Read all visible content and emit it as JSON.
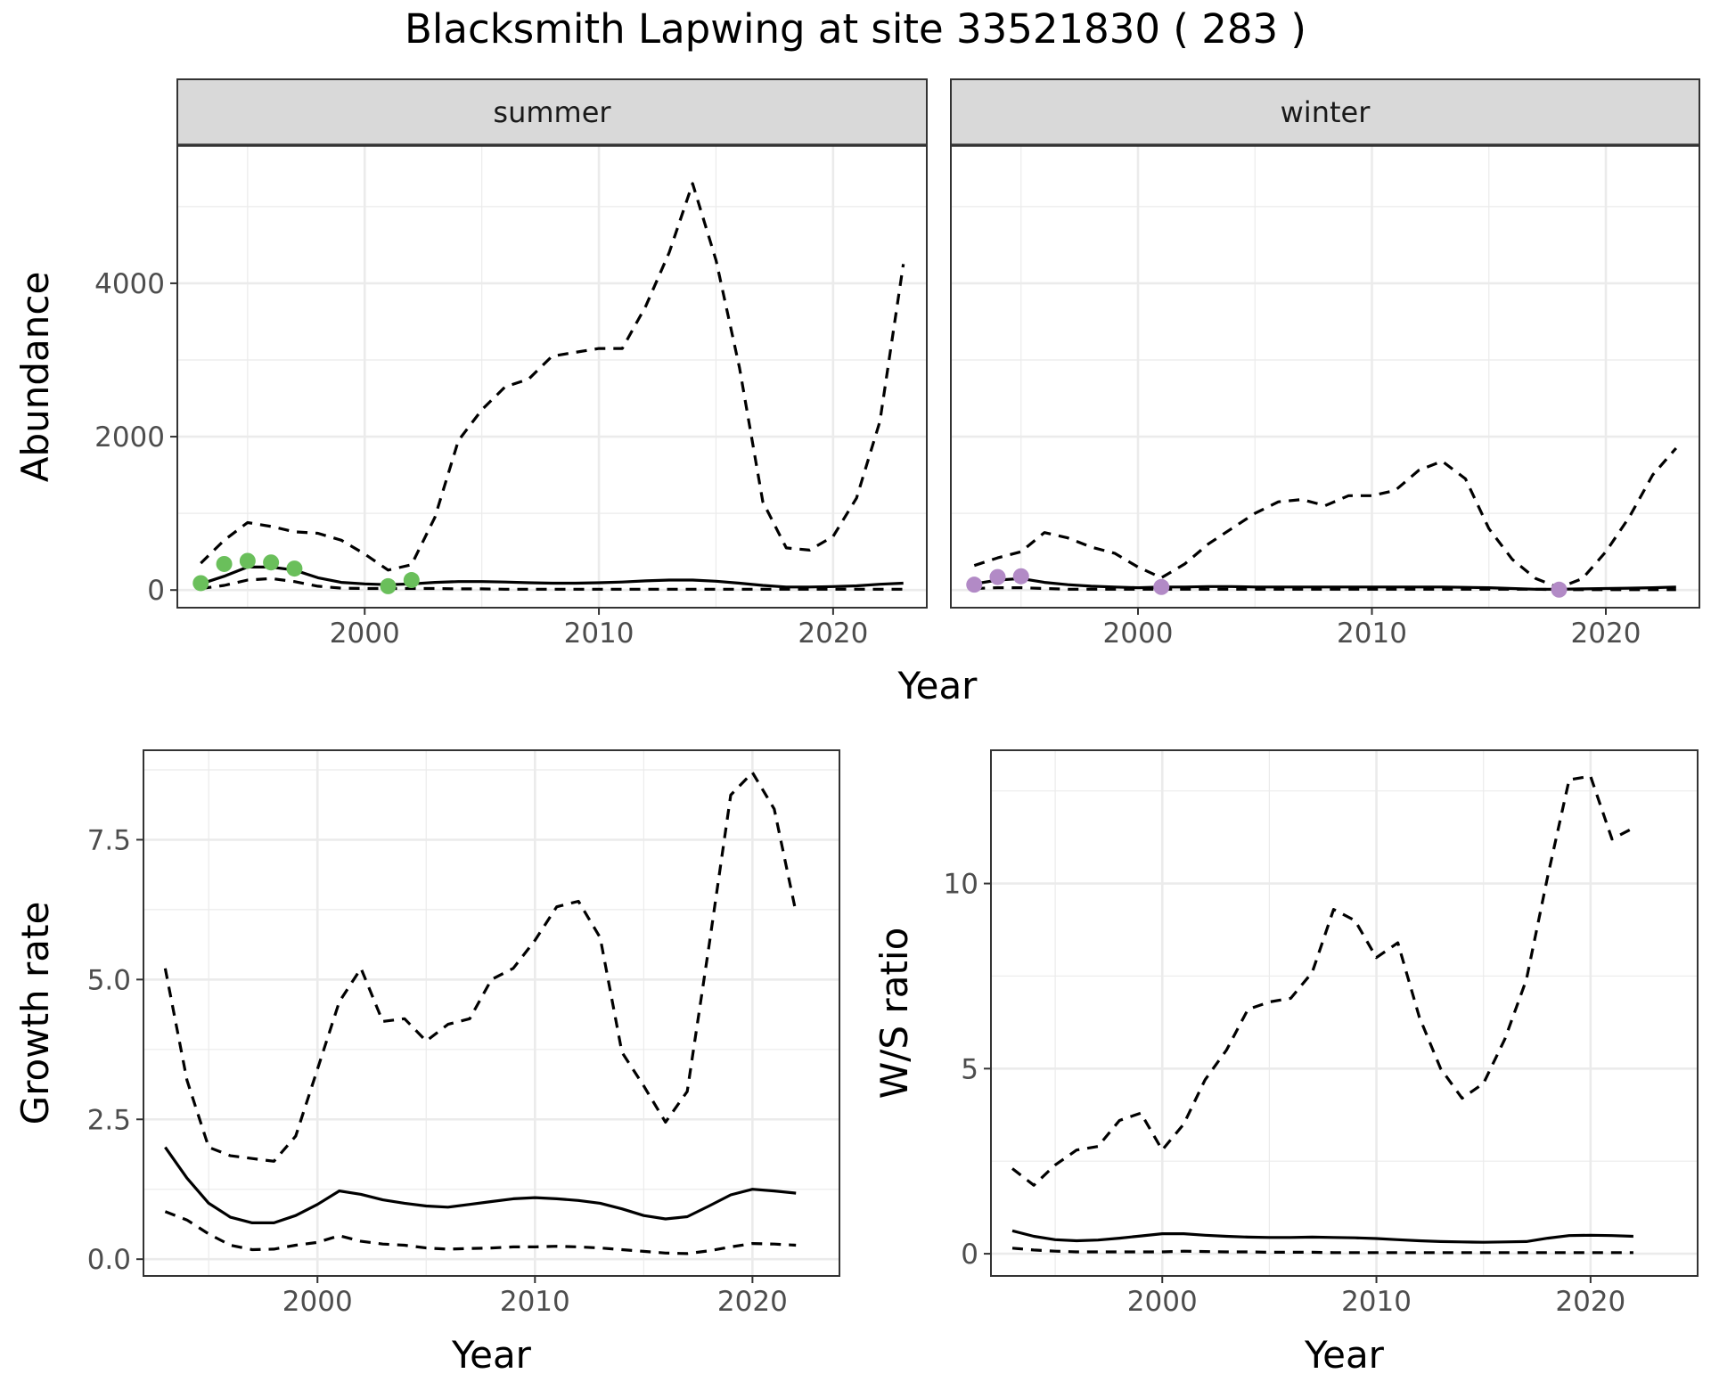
{
  "title": "Blacksmith Lapwing at site 33521830 ( 283 )",
  "colors": {
    "summer_points": "#6abf5b",
    "winter_points": "#b28ac6",
    "strip_fill": "#d9d9d9",
    "grid": "#ebebeb",
    "line": "#000000"
  },
  "chart_data": [
    {
      "type": "line",
      "panel": "summer",
      "strip_label": "summer",
      "xlabel": "Year",
      "ylabel": "Abundance",
      "xlim": [
        1992,
        2024
      ],
      "ylim": [
        -230,
        5800
      ],
      "xticks": [
        2000,
        2010,
        2020
      ],
      "yticks": [
        0,
        2000,
        4000
      ],
      "grid": true,
      "x": [
        1993,
        1994,
        1995,
        1996,
        1997,
        1998,
        1999,
        2000,
        2001,
        2002,
        2003,
        2004,
        2005,
        2006,
        2007,
        2008,
        2009,
        2010,
        2011,
        2012,
        2013,
        2014,
        2015,
        2016,
        2017,
        2018,
        2019,
        2020,
        2021,
        2022,
        2023
      ],
      "series": [
        {
          "style": "solid",
          "values": [
            80,
            180,
            300,
            300,
            260,
            160,
            100,
            80,
            70,
            80,
            100,
            110,
            110,
            105,
            95,
            90,
            90,
            95,
            105,
            120,
            130,
            130,
            115,
            90,
            60,
            40,
            40,
            45,
            55,
            75,
            90
          ]
        },
        {
          "style": "dashed",
          "values": [
            350,
            650,
            880,
            830,
            760,
            740,
            650,
            470,
            260,
            330,
            950,
            1950,
            2350,
            2650,
            2750,
            3050,
            3100,
            3150,
            3150,
            3700,
            4400,
            5300,
            4300,
            2900,
            1150,
            550,
            520,
            700,
            1200,
            2200,
            4250
          ]
        },
        {
          "style": "dashed",
          "values": [
            20,
            60,
            130,
            150,
            110,
            50,
            25,
            20,
            20,
            20,
            20,
            15,
            15,
            10,
            10,
            10,
            10,
            10,
            10,
            10,
            10,
            10,
            10,
            10,
            10,
            10,
            10,
            10,
            10,
            10,
            10
          ]
        }
      ],
      "points": {
        "color": "#6abf5b",
        "x": [
          1993,
          1994,
          1995,
          1996,
          1997,
          2001,
          2002
        ],
        "y": [
          90,
          340,
          380,
          360,
          280,
          50,
          130
        ]
      }
    },
    {
      "type": "line",
      "panel": "winter",
      "strip_label": "winter",
      "xlabel": "Year",
      "ylabel": "",
      "xlim": [
        1992,
        2024
      ],
      "ylim": [
        -230,
        5800
      ],
      "xticks": [
        2000,
        2010,
        2020
      ],
      "yticks": [
        0,
        2000,
        4000
      ],
      "grid": true,
      "x": [
        1993,
        1994,
        1995,
        1996,
        1997,
        1998,
        1999,
        2000,
        2001,
        2002,
        2003,
        2004,
        2005,
        2006,
        2007,
        2008,
        2009,
        2010,
        2011,
        2012,
        2013,
        2014,
        2015,
        2016,
        2017,
        2018,
        2019,
        2020,
        2021,
        2022,
        2023
      ],
      "series": [
        {
          "style": "solid",
          "values": [
            80,
            130,
            150,
            100,
            70,
            50,
            40,
            30,
            40,
            40,
            45,
            45,
            40,
            40,
            40,
            40,
            40,
            40,
            40,
            40,
            40,
            35,
            30,
            20,
            10,
            10,
            15,
            20,
            25,
            30,
            40
          ]
        },
        {
          "style": "dashed",
          "values": [
            320,
            420,
            500,
            750,
            680,
            560,
            480,
            300,
            160,
            340,
            600,
            800,
            1000,
            1150,
            1180,
            1100,
            1230,
            1230,
            1300,
            1560,
            1680,
            1450,
            800,
            400,
            150,
            30,
            150,
            500,
            950,
            1500,
            1850
          ]
        },
        {
          "style": "dashed",
          "values": [
            20,
            30,
            30,
            20,
            10,
            10,
            10,
            10,
            10,
            10,
            10,
            10,
            10,
            10,
            10,
            10,
            10,
            10,
            10,
            10,
            10,
            10,
            10,
            10,
            10,
            5,
            5,
            5,
            5,
            5,
            5
          ]
        }
      ],
      "points": {
        "color": "#b28ac6",
        "x": [
          1993,
          1994,
          1995,
          2001,
          2018
        ],
        "y": [
          70,
          170,
          180,
          40,
          5
        ]
      }
    },
    {
      "type": "line",
      "panel": "growth",
      "xlabel": "Year",
      "ylabel": "Growth rate",
      "xlim": [
        1992,
        2024
      ],
      "ylim": [
        -0.3,
        9.1
      ],
      "xticks": [
        2000,
        2010,
        2020
      ],
      "yticks": [
        0.0,
        2.5,
        5.0,
        7.5
      ],
      "ytick_labels": [
        "0.0",
        "2.5",
        "5.0",
        "7.5"
      ],
      "grid": true,
      "x": [
        1993,
        1994,
        1995,
        1996,
        1997,
        1998,
        1999,
        2000,
        2001,
        2002,
        2003,
        2004,
        2005,
        2006,
        2007,
        2008,
        2009,
        2010,
        2011,
        2012,
        2013,
        2014,
        2015,
        2016,
        2017,
        2018,
        2019,
        2020,
        2021,
        2022
      ],
      "series": [
        {
          "style": "solid",
          "values": [
            2.0,
            1.45,
            1.0,
            0.75,
            0.65,
            0.65,
            0.78,
            0.98,
            1.22,
            1.16,
            1.06,
            1.0,
            0.95,
            0.93,
            0.98,
            1.03,
            1.08,
            1.1,
            1.08,
            1.05,
            1.0,
            0.9,
            0.78,
            0.72,
            0.76,
            0.95,
            1.15,
            1.25,
            1.22,
            1.18
          ]
        },
        {
          "style": "dashed",
          "values": [
            5.2,
            3.2,
            2.0,
            1.85,
            1.8,
            1.75,
            2.2,
            3.4,
            4.6,
            5.2,
            4.25,
            4.3,
            3.9,
            4.2,
            4.3,
            5.0,
            5.2,
            5.7,
            6.3,
            6.4,
            5.75,
            3.7,
            3.1,
            2.45,
            3.0,
            5.6,
            8.3,
            8.7,
            8.05,
            6.2
          ]
        },
        {
          "style": "dashed",
          "values": [
            0.85,
            0.7,
            0.45,
            0.25,
            0.17,
            0.18,
            0.25,
            0.3,
            0.42,
            0.32,
            0.27,
            0.25,
            0.2,
            0.18,
            0.19,
            0.2,
            0.22,
            0.22,
            0.23,
            0.22,
            0.2,
            0.17,
            0.14,
            0.11,
            0.1,
            0.15,
            0.22,
            0.28,
            0.27,
            0.25
          ]
        }
      ]
    },
    {
      "type": "line",
      "panel": "ratio",
      "xlabel": "Year",
      "ylabel": "W/S ratio",
      "xlim": [
        1992,
        2025
      ],
      "ylim": [
        -0.6,
        13.6
      ],
      "xticks": [
        2000,
        2010,
        2020
      ],
      "yticks": [
        0,
        5,
        10
      ],
      "grid": true,
      "x": [
        1993,
        1994,
        1995,
        1996,
        1997,
        1998,
        1999,
        2000,
        2001,
        2002,
        2003,
        2004,
        2005,
        2006,
        2007,
        2008,
        2009,
        2010,
        2011,
        2012,
        2013,
        2014,
        2015,
        2016,
        2017,
        2018,
        2019,
        2020,
        2021,
        2022
      ],
      "series": [
        {
          "style": "solid",
          "values": [
            0.62,
            0.47,
            0.38,
            0.35,
            0.37,
            0.42,
            0.48,
            0.54,
            0.54,
            0.5,
            0.47,
            0.45,
            0.44,
            0.44,
            0.45,
            0.44,
            0.43,
            0.41,
            0.38,
            0.35,
            0.33,
            0.32,
            0.31,
            0.32,
            0.33,
            0.42,
            0.49,
            0.5,
            0.49,
            0.47
          ]
        },
        {
          "style": "dashed",
          "values": [
            2.3,
            1.85,
            2.4,
            2.8,
            2.9,
            3.6,
            3.8,
            2.8,
            3.5,
            4.7,
            5.5,
            6.6,
            6.8,
            6.9,
            7.6,
            9.3,
            9.0,
            8.0,
            8.4,
            6.4,
            5.0,
            4.2,
            4.6,
            5.8,
            7.4,
            10.2,
            12.8,
            12.9,
            11.2,
            11.5
          ]
        },
        {
          "style": "dashed",
          "values": [
            0.15,
            0.1,
            0.07,
            0.05,
            0.05,
            0.05,
            0.05,
            0.05,
            0.07,
            0.06,
            0.05,
            0.05,
            0.04,
            0.04,
            0.04,
            0.03,
            0.03,
            0.03,
            0.03,
            0.03,
            0.03,
            0.03,
            0.03,
            0.03,
            0.03,
            0.03,
            0.03,
            0.03,
            0.03,
            0.03
          ]
        }
      ]
    }
  ]
}
